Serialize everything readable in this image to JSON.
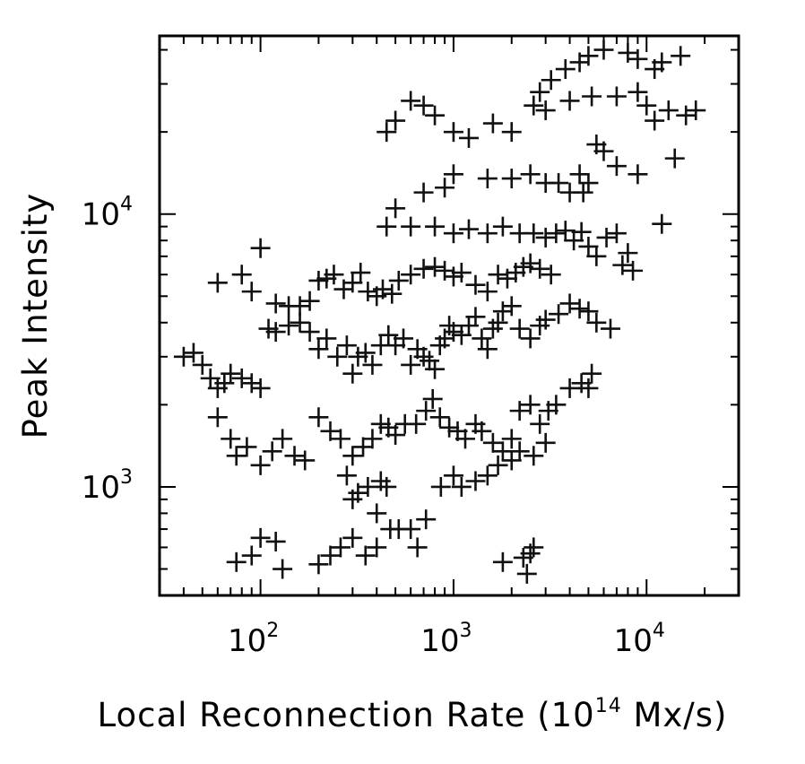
{
  "chart_data": {
    "type": "scatter",
    "xlabel_main": "Local Reconnection Rate (10",
    "xlabel_sup": "14",
    "xlabel_tail": " Mx/s)",
    "ylabel": "Peak Intensity",
    "x_scale": "log",
    "y_scale": "log",
    "xlim": [
      30,
      30000
    ],
    "ylim": [
      400,
      45000
    ],
    "x_ticks": [
      {
        "base": "10",
        "exp": "2",
        "value": 100
      },
      {
        "base": "10",
        "exp": "3",
        "value": 1000
      },
      {
        "base": "10",
        "exp": "4",
        "value": 10000
      }
    ],
    "y_ticks": [
      {
        "base": "10",
        "exp": "3",
        "value": 1000
      },
      {
        "base": "10",
        "exp": "4",
        "value": 10000
      }
    ],
    "marker": "plus",
    "grid": false,
    "points": [
      [
        15000,
        38000
      ],
      [
        12000,
        36000
      ],
      [
        11000,
        34000
      ],
      [
        9000,
        37000
      ],
      [
        8000,
        39000
      ],
      [
        6000,
        40000
      ],
      [
        5000,
        38000
      ],
      [
        4500,
        36000
      ],
      [
        3800,
        34000
      ],
      [
        3200,
        31000
      ],
      [
        2800,
        28000
      ],
      [
        2600,
        25000
      ],
      [
        3000,
        24000
      ],
      [
        4000,
        26000
      ],
      [
        5200,
        27000
      ],
      [
        7000,
        27000
      ],
      [
        9000,
        28000
      ],
      [
        10000,
        25000
      ],
      [
        11000,
        22000
      ],
      [
        13000,
        24000
      ],
      [
        16000,
        23000
      ],
      [
        18000,
        24000
      ],
      [
        14000,
        16000
      ],
      [
        12000,
        9200
      ],
      [
        9000,
        14000
      ],
      [
        7000,
        15000
      ],
      [
        6000,
        17000
      ],
      [
        5500,
        18000
      ],
      [
        5000,
        13000
      ],
      [
        4700,
        12000
      ],
      [
        4500,
        14000
      ],
      [
        4000,
        12000
      ],
      [
        3500,
        13000
      ],
      [
        3000,
        13000
      ],
      [
        2500,
        14000
      ],
      [
        2000,
        13500
      ],
      [
        1500,
        13500
      ],
      [
        1000,
        14000
      ],
      [
        900,
        12500
      ],
      [
        700,
        12000
      ],
      [
        500,
        10500
      ],
      [
        450,
        9000
      ],
      [
        600,
        9000
      ],
      [
        800,
        9000
      ],
      [
        1000,
        8500
      ],
      [
        1200,
        8800
      ],
      [
        1500,
        8500
      ],
      [
        1800,
        9000
      ],
      [
        2200,
        8500
      ],
      [
        2600,
        8500
      ],
      [
        3000,
        8200
      ],
      [
        3400,
        8500
      ],
      [
        3800,
        8700
      ],
      [
        4200,
        8000
      ],
      [
        4600,
        8600
      ],
      [
        5000,
        7600
      ],
      [
        5500,
        7000
      ],
      [
        6200,
        8200
      ],
      [
        7000,
        8500
      ],
      [
        8000,
        7200
      ],
      [
        7500,
        6500
      ],
      [
        8500,
        6200
      ],
      [
        2000,
        20000
      ],
      [
        1600,
        21500
      ],
      [
        1200,
        19000
      ],
      [
        1000,
        20000
      ],
      [
        800,
        23000
      ],
      [
        700,
        25000
      ],
      [
        600,
        26000
      ],
      [
        500,
        22000
      ],
      [
        450,
        20000
      ],
      [
        100,
        7500
      ],
      [
        90,
        5200
      ],
      [
        80,
        6000
      ],
      [
        60,
        5600
      ],
      [
        120,
        4700
      ],
      [
        140,
        4600
      ],
      [
        160,
        4600
      ],
      [
        180,
        4800
      ],
      [
        200,
        5700
      ],
      [
        220,
        5800
      ],
      [
        240,
        6000
      ],
      [
        270,
        5300
      ],
      [
        300,
        5600
      ],
      [
        330,
        6100
      ],
      [
        360,
        5200
      ],
      [
        400,
        5000
      ],
      [
        430,
        5300
      ],
      [
        480,
        5100
      ],
      [
        520,
        5700
      ],
      [
        600,
        6000
      ],
      [
        700,
        6300
      ],
      [
        800,
        6400
      ],
      [
        900,
        6200
      ],
      [
        1000,
        5900
      ],
      [
        1100,
        6100
      ],
      [
        1300,
        5500
      ],
      [
        1500,
        5200
      ],
      [
        1700,
        6000
      ],
      [
        1900,
        5800
      ],
      [
        2100,
        6100
      ],
      [
        2300,
        6400
      ],
      [
        2500,
        6600
      ],
      [
        2800,
        6300
      ],
      [
        3200,
        6000
      ],
      [
        40,
        3000
      ],
      [
        45,
        3100
      ],
      [
        50,
        2800
      ],
      [
        55,
        2500
      ],
      [
        60,
        2300
      ],
      [
        65,
        2400
      ],
      [
        70,
        2600
      ],
      [
        80,
        2500
      ],
      [
        90,
        2400
      ],
      [
        100,
        2300
      ],
      [
        110,
        3800
      ],
      [
        120,
        3700
      ],
      [
        140,
        3900
      ],
      [
        160,
        4000
      ],
      [
        180,
        3700
      ],
      [
        200,
        3200
      ],
      [
        220,
        3500
      ],
      [
        250,
        3000
      ],
      [
        280,
        3300
      ],
      [
        300,
        2600
      ],
      [
        320,
        3000
      ],
      [
        350,
        3100
      ],
      [
        380,
        2800
      ],
      [
        420,
        3300
      ],
      [
        460,
        3600
      ],
      [
        500,
        3300
      ],
      [
        550,
        3500
      ],
      [
        600,
        2800
      ],
      [
        650,
        3200
      ],
      [
        700,
        3000
      ],
      [
        750,
        2900
      ],
      [
        800,
        2700
      ],
      [
        850,
        3300
      ],
      [
        900,
        3500
      ],
      [
        950,
        3900
      ],
      [
        1000,
        3700
      ],
      [
        1100,
        3600
      ],
      [
        1200,
        3900
      ],
      [
        1300,
        4200
      ],
      [
        1400,
        3500
      ],
      [
        1500,
        3200
      ],
      [
        1600,
        3800
      ],
      [
        1700,
        4000
      ],
      [
        1800,
        4400
      ],
      [
        2000,
        4600
      ],
      [
        2200,
        3800
      ],
      [
        2500,
        3500
      ],
      [
        2800,
        3900
      ],
      [
        3000,
        4100
      ],
      [
        3500,
        4300
      ],
      [
        4000,
        4700
      ],
      [
        4500,
        4500
      ],
      [
        5000,
        4400
      ],
      [
        5500,
        4000
      ],
      [
        6500,
        3800
      ],
      [
        60,
        1800
      ],
      [
        70,
        1500
      ],
      [
        75,
        1300
      ],
      [
        85,
        1400
      ],
      [
        100,
        1200
      ],
      [
        115,
        1350
      ],
      [
        130,
        1500
      ],
      [
        150,
        1300
      ],
      [
        170,
        1250
      ],
      [
        200,
        1800
      ],
      [
        230,
        1600
      ],
      [
        260,
        1500
      ],
      [
        300,
        1300
      ],
      [
        340,
        1400
      ],
      [
        380,
        1500
      ],
      [
        420,
        1700
      ],
      [
        460,
        1650
      ],
      [
        500,
        1550
      ],
      [
        560,
        1700
      ],
      [
        640,
        1700
      ],
      [
        720,
        1900
      ],
      [
        780,
        2100
      ],
      [
        850,
        1800
      ],
      [
        950,
        1650
      ],
      [
        1050,
        1600
      ],
      [
        1150,
        1500
      ],
      [
        1300,
        1700
      ],
      [
        1400,
        1600
      ],
      [
        1600,
        1450
      ],
      [
        1800,
        1350
      ],
      [
        2000,
        1500
      ],
      [
        2200,
        1900
      ],
      [
        2500,
        2000
      ],
      [
        2800,
        1700
      ],
      [
        3100,
        1900
      ],
      [
        3400,
        2000
      ],
      [
        4000,
        2300
      ],
      [
        4600,
        2400
      ],
      [
        5200,
        2600
      ],
      [
        5000,
        2300
      ],
      [
        280,
        1100
      ],
      [
        300,
        900
      ],
      [
        320,
        950
      ],
      [
        360,
        1000
      ],
      [
        420,
        1050
      ],
      [
        450,
        1000
      ],
      [
        400,
        800
      ],
      [
        470,
        700
      ],
      [
        520,
        700
      ],
      [
        600,
        700
      ],
      [
        650,
        600
      ],
      [
        720,
        760
      ],
      [
        300,
        650
      ],
      [
        260,
        600
      ],
      [
        230,
        560
      ],
      [
        200,
        520
      ],
      [
        350,
        560
      ],
      [
        400,
        600
      ],
      [
        120,
        630
      ],
      [
        100,
        650
      ],
      [
        90,
        560
      ],
      [
        75,
        530
      ],
      [
        130,
        500
      ],
      [
        1800,
        530
      ],
      [
        2300,
        550
      ],
      [
        2500,
        570
      ],
      [
        2400,
        480
      ],
      [
        2600,
        600
      ],
      [
        860,
        1000
      ],
      [
        1000,
        1100
      ],
      [
        1100,
        1000
      ],
      [
        1300,
        1050
      ],
      [
        1500,
        1100
      ],
      [
        1700,
        1200
      ],
      [
        2000,
        1250
      ],
      [
        2200,
        1350
      ],
      [
        2600,
        1300
      ],
      [
        3000,
        1450
      ]
    ]
  }
}
